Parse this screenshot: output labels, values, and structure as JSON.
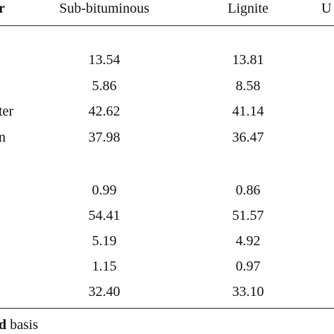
{
  "table": {
    "header": [
      "r",
      "Sub-bituminous",
      "Lignite",
      "U"
    ],
    "rows": [
      {
        "values": [
          "13.54",
          "13.81"
        ]
      },
      {
        "values": [
          "5.86",
          "8.58"
        ]
      },
      {
        "label": "ter",
        "values": [
          "42.62",
          "41.14"
        ]
      },
      {
        "label": "n",
        "values": [
          "37.98",
          "36.47"
        ]
      },
      {
        "values": [
          "0.99",
          "0.86"
        ]
      },
      {
        "values": [
          "54.41",
          "51.57"
        ]
      },
      {
        "values": [
          "5.19",
          "4.92"
        ]
      },
      {
        "values": [
          "1.15",
          "0.97"
        ]
      },
      {
        "values": [
          "32.40",
          "33.10"
        ]
      }
    ],
    "footnote": {
      "bold": "d",
      "text": "basis"
    }
  }
}
